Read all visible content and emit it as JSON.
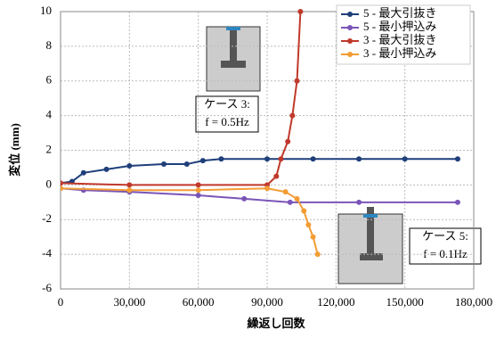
{
  "chart_data": {
    "type": "line",
    "xlabel": "繰返し回数",
    "ylabel": "変位 (mm)",
    "xlim": [
      0,
      180000
    ],
    "ylim": [
      -6,
      10
    ],
    "xticks": [
      0,
      {
        "value": 30000,
        "label": "30,000"
      },
      {
        "value": 60000,
        "label": "60,000"
      },
      {
        "value": 90000,
        "label": "90,000"
      },
      {
        "value": 120000,
        "label": "120,000"
      },
      {
        "value": 150000,
        "label": "150,000"
      },
      {
        "value": 180000,
        "label": "180,000"
      }
    ],
    "yticks": [
      -6,
      -4,
      -2,
      0,
      2,
      4,
      6,
      8,
      10
    ],
    "grid": true,
    "legend": "upper right",
    "series": [
      {
        "name": "5 - 最大引抜き",
        "color": "#1f3f7a",
        "x": [
          0,
          5000,
          10000,
          20000,
          30000,
          45000,
          55000,
          62000,
          70000,
          90000,
          110000,
          130000,
          150000,
          173000
        ],
        "values": [
          0.1,
          0.2,
          0.7,
          0.9,
          1.1,
          1.2,
          1.2,
          1.4,
          1.5,
          1.5,
          1.5,
          1.5,
          1.5,
          1.5
        ]
      },
      {
        "name": "5 - 最小押込み",
        "color": "#7a55b8",
        "x": [
          0,
          10000,
          30000,
          60000,
          80000,
          100000,
          130000,
          173000
        ],
        "values": [
          -0.2,
          -0.3,
          -0.4,
          -0.6,
          -0.8,
          -1.0,
          -1.0,
          -1.0
        ]
      },
      {
        "name": "3 - 最大引抜き",
        "color": "#c0392b",
        "x": [
          0,
          30000,
          60000,
          90000,
          94000,
          96000,
          99000,
          101000,
          103000,
          104500
        ],
        "values": [
          0.1,
          0.0,
          0.0,
          0.0,
          0.5,
          1.5,
          2.5,
          4,
          6,
          10
        ]
      },
      {
        "name": "3 - 最小押込み",
        "color": "#f39c34",
        "x": [
          0,
          30000,
          60000,
          90000,
          98000,
          103000,
          106000,
          108000,
          110000,
          112000
        ],
        "values": [
          -0.2,
          -0.3,
          -0.3,
          -0.2,
          -0.4,
          -0.8,
          -1.5,
          -2.3,
          -3,
          -4
        ]
      }
    ],
    "annotations": [
      {
        "line1": "ケース 3:",
        "line2": "f = 0.5Hz"
      },
      {
        "line1": "ケース 5:",
        "line2": "f = 0.1Hz"
      }
    ]
  }
}
